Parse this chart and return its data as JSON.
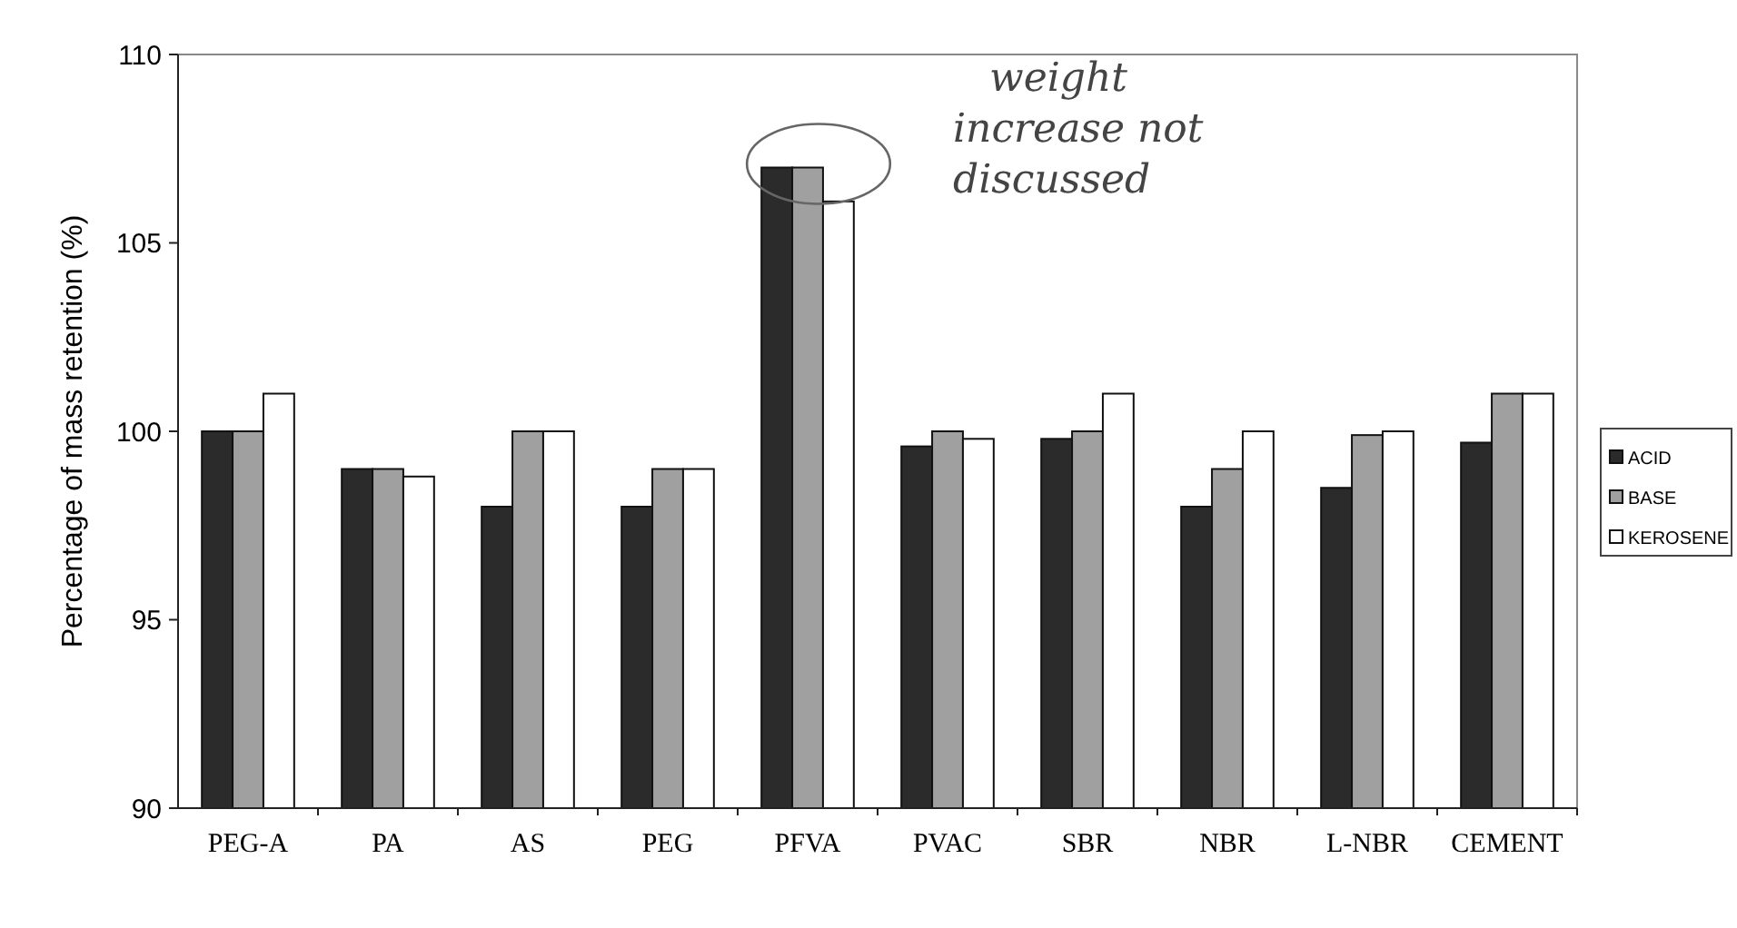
{
  "chart_data": {
    "type": "bar",
    "ylabel": "Percentage of mass retention (%)",
    "categories": [
      "PEG-A",
      "PA",
      "AS",
      "PEG",
      "PFVA",
      "PVAC",
      "SBR",
      "NBR",
      "L-NBR",
      "CEMENT"
    ],
    "series": [
      {
        "name": "ACID",
        "color": "#2b2b2b",
        "values": [
          100,
          99,
          98,
          98,
          107,
          99.6,
          99.8,
          98,
          98.5,
          99.7
        ]
      },
      {
        "name": "BASE",
        "color": "#a0a0a0",
        "values": [
          100,
          99,
          100,
          99,
          107,
          100,
          100,
          99,
          99.9,
          101
        ]
      },
      {
        "name": "KEROSENE",
        "color": "#ffffff",
        "values": [
          101,
          98.8,
          100,
          99,
          106.1,
          99.8,
          101,
          100,
          100,
          101
        ]
      }
    ],
    "ylim": [
      90,
      110
    ],
    "yticks": [
      90,
      95,
      100,
      105,
      110
    ],
    "grid": false,
    "legend": "right",
    "annotations": [
      "weight increase not discussed"
    ]
  }
}
